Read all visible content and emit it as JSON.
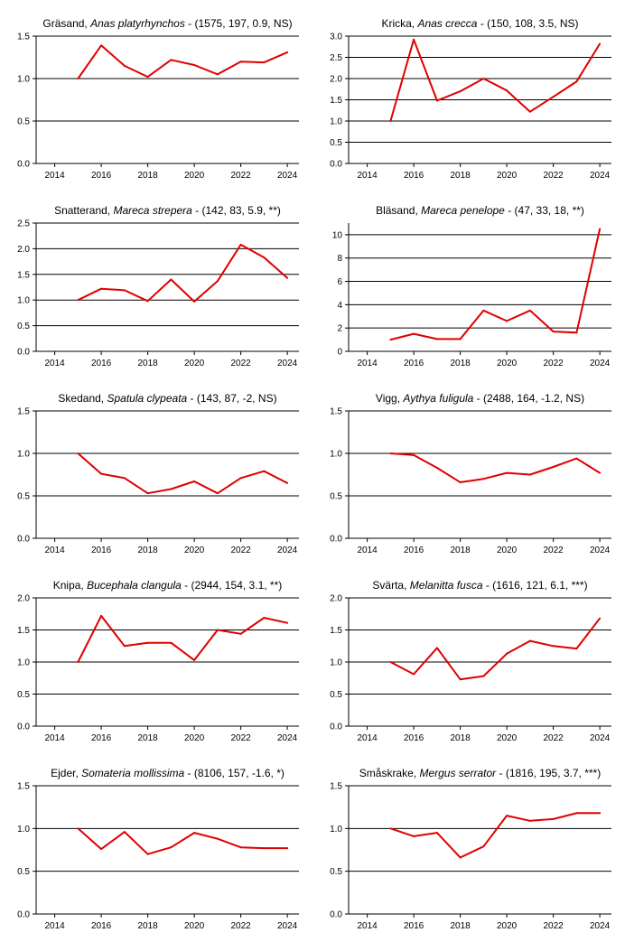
{
  "colors": {
    "line": "#e00000",
    "axis": "#000000",
    "grid": "#000000"
  },
  "chart_data": [
    {
      "type": "line",
      "common_name": "Gräsand",
      "latin_name": "Anas platyrhynchos",
      "stats": " - (1575, 197, 0.9, NS)",
      "x": [
        2015,
        2016,
        2017,
        2018,
        2019,
        2020,
        2021,
        2022,
        2023,
        2024
      ],
      "values": [
        1.0,
        1.39,
        1.15,
        1.02,
        1.22,
        1.16,
        1.05,
        1.2,
        1.19,
        1.31
      ],
      "xlim": [
        2013.2,
        2024.5
      ],
      "ylim": [
        0,
        1.5
      ],
      "xticks": [
        "2014",
        "2016",
        "2018",
        "2020",
        "2022",
        "2024"
      ],
      "yticks": [
        "0.0",
        "0.5",
        "1.0",
        "1.5"
      ],
      "grid": "horizontal"
    },
    {
      "type": "line",
      "common_name": "Kricka",
      "latin_name": "Anas crecca",
      "stats": " - (150, 108, 3.5, NS)",
      "x": [
        2015,
        2016,
        2017,
        2018,
        2019,
        2020,
        2021,
        2022,
        2023,
        2024
      ],
      "values": [
        1.0,
        2.92,
        1.48,
        1.7,
        2.0,
        1.72,
        1.22,
        1.57,
        1.93,
        2.82
      ],
      "xlim": [
        2013.2,
        2024.5
      ],
      "ylim": [
        0,
        3.0
      ],
      "xticks": [
        "2014",
        "2016",
        "2018",
        "2020",
        "2022",
        "2024"
      ],
      "yticks": [
        "0.0",
        "0.5",
        "1.0",
        "1.5",
        "2.0",
        "2.5",
        "3.0"
      ],
      "grid": "horizontal"
    },
    {
      "type": "line",
      "common_name": "Snatterand",
      "latin_name": "Mareca strepera",
      "stats": " - (142, 83, 5.9, **)",
      "x": [
        2015,
        2016,
        2017,
        2018,
        2019,
        2020,
        2021,
        2022,
        2023,
        2024
      ],
      "values": [
        1.0,
        1.22,
        1.19,
        0.98,
        1.4,
        0.97,
        1.37,
        2.08,
        1.83,
        1.43
      ],
      "xlim": [
        2013.2,
        2024.5
      ],
      "ylim": [
        0,
        2.5
      ],
      "xticks": [
        "2014",
        "2016",
        "2018",
        "2020",
        "2022",
        "2024"
      ],
      "yticks": [
        "0.0",
        "0.5",
        "1.0",
        "1.5",
        "2.0",
        "2.5"
      ],
      "grid": "horizontal"
    },
    {
      "type": "line",
      "common_name": "Bläsand",
      "latin_name": "Mareca penelope",
      "stats": " - (47, 33, 18, **)",
      "x": [
        2015,
        2016,
        2017,
        2018,
        2019,
        2020,
        2021,
        2022,
        2023,
        2024
      ],
      "values": [
        1.0,
        1.5,
        1.05,
        1.05,
        3.5,
        2.6,
        3.5,
        1.7,
        1.6,
        10.5
      ],
      "xlim": [
        2013.2,
        2024.5
      ],
      "ylim": [
        0,
        11
      ],
      "xticks": [
        "2014",
        "2016",
        "2018",
        "2020",
        "2022",
        "2024"
      ],
      "yticks": [
        "0",
        "2",
        "4",
        "6",
        "8",
        "10"
      ],
      "grid": "horizontal"
    },
    {
      "type": "line",
      "common_name": "Skedand",
      "latin_name": "Spatula clypeata",
      "stats": " - (143, 87, -2, NS)",
      "x": [
        2015,
        2016,
        2017,
        2018,
        2019,
        2020,
        2021,
        2022,
        2023,
        2024
      ],
      "values": [
        1.0,
        0.76,
        0.71,
        0.53,
        0.58,
        0.67,
        0.53,
        0.71,
        0.79,
        0.65
      ],
      "xlim": [
        2013.2,
        2024.5
      ],
      "ylim": [
        0,
        1.5
      ],
      "xticks": [
        "2014",
        "2016",
        "2018",
        "2020",
        "2022",
        "2024"
      ],
      "yticks": [
        "0.0",
        "0.5",
        "1.0",
        "1.5"
      ],
      "grid": "horizontal"
    },
    {
      "type": "line",
      "common_name": "Vigg",
      "latin_name": "Aythya fuligula",
      "stats": " - (2488, 164, -1.2, NS)",
      "x": [
        2015,
        2016,
        2017,
        2018,
        2019,
        2020,
        2021,
        2022,
        2023,
        2024
      ],
      "values": [
        1.0,
        0.98,
        0.83,
        0.66,
        0.7,
        0.77,
        0.75,
        0.84,
        0.94,
        0.77
      ],
      "xlim": [
        2013.2,
        2024.5
      ],
      "ylim": [
        0,
        1.5
      ],
      "xticks": [
        "2014",
        "2016",
        "2018",
        "2020",
        "2022",
        "2024"
      ],
      "yticks": [
        "0.0",
        "0.5",
        "1.0",
        "1.5"
      ],
      "grid": "horizontal"
    },
    {
      "type": "line",
      "common_name": "Knipa",
      "latin_name": "Bucephala clangula",
      "stats": " - (2944, 154, 3.1, **)",
      "x": [
        2015,
        2016,
        2017,
        2018,
        2019,
        2020,
        2021,
        2022,
        2023,
        2024
      ],
      "values": [
        1.0,
        1.72,
        1.25,
        1.3,
        1.3,
        1.03,
        1.5,
        1.44,
        1.69,
        1.61
      ],
      "xlim": [
        2013.2,
        2024.5
      ],
      "ylim": [
        0,
        2.0
      ],
      "xticks": [
        "2014",
        "2016",
        "2018",
        "2020",
        "2022",
        "2024"
      ],
      "yticks": [
        "0.0",
        "0.5",
        "1.0",
        "1.5",
        "2.0"
      ],
      "grid": "horizontal"
    },
    {
      "type": "line",
      "common_name": "Svärta",
      "latin_name": "Melanitta fusca",
      "stats": " - (1616, 121, 6.1, ***)",
      "x": [
        2015,
        2016,
        2017,
        2018,
        2019,
        2020,
        2021,
        2022,
        2023,
        2024
      ],
      "values": [
        1.0,
        0.81,
        1.22,
        0.73,
        0.78,
        1.13,
        1.33,
        1.25,
        1.21,
        1.68
      ],
      "xlim": [
        2013.2,
        2024.5
      ],
      "ylim": [
        0,
        2.0
      ],
      "xticks": [
        "2014",
        "2016",
        "2018",
        "2020",
        "2022",
        "2024"
      ],
      "yticks": [
        "0.0",
        "0.5",
        "1.0",
        "1.5",
        "2.0"
      ],
      "grid": "horizontal"
    },
    {
      "type": "line",
      "common_name": "Ejder",
      "latin_name": "Somateria mollissima",
      "stats": " - (8106, 157, -1.6, *)",
      "x": [
        2015,
        2016,
        2017,
        2018,
        2019,
        2020,
        2021,
        2022,
        2023,
        2024
      ],
      "values": [
        1.0,
        0.76,
        0.96,
        0.7,
        0.78,
        0.95,
        0.88,
        0.78,
        0.77,
        0.77
      ],
      "xlim": [
        2013.2,
        2024.5
      ],
      "ylim": [
        0,
        1.5
      ],
      "xticks": [
        "2014",
        "2016",
        "2018",
        "2020",
        "2022",
        "2024"
      ],
      "yticks": [
        "0.0",
        "0.5",
        "1.0",
        "1.5"
      ],
      "grid": "horizontal"
    },
    {
      "type": "line",
      "common_name": "Småskrake",
      "latin_name": "Mergus serrator",
      "stats": " - (1816, 195, 3.7, ***)",
      "x": [
        2015,
        2016,
        2017,
        2018,
        2019,
        2020,
        2021,
        2022,
        2023,
        2024
      ],
      "values": [
        1.0,
        0.91,
        0.95,
        0.66,
        0.79,
        1.15,
        1.09,
        1.11,
        1.18,
        1.18
      ],
      "xlim": [
        2013.2,
        2024.5
      ],
      "ylim": [
        0,
        1.5
      ],
      "xticks": [
        "2014",
        "2016",
        "2018",
        "2020",
        "2022",
        "2024"
      ],
      "yticks": [
        "0.0",
        "0.5",
        "1.0",
        "1.5"
      ],
      "grid": "horizontal"
    }
  ]
}
